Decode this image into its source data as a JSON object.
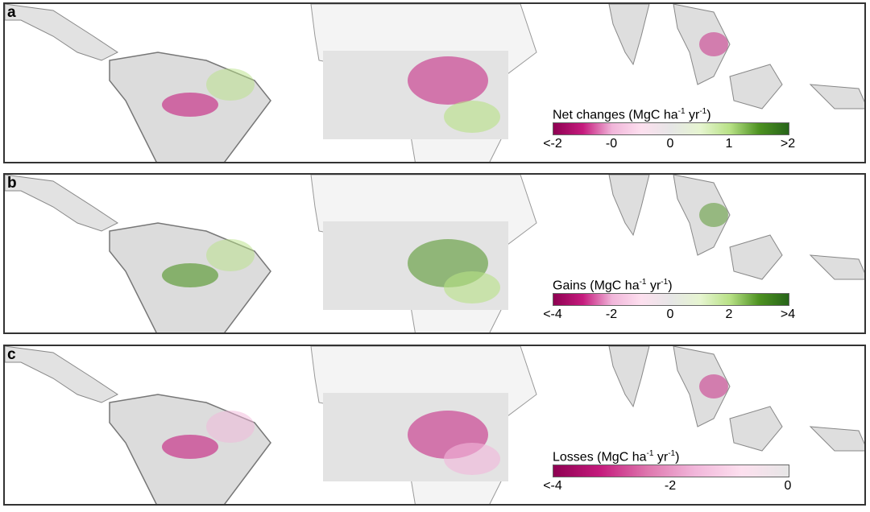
{
  "panels": [
    {
      "label": "a",
      "legend": {
        "title": "Net changes (MgC ha",
        "u1": "-1",
        "mid": " yr",
        "u2": "-1",
        "end": ")",
        "ticks": [
          "<-2",
          "-0",
          "0",
          "1",
          ">2"
        ]
      },
      "colors": [
        "#8e0152",
        "#c51b7d",
        "#f1b6da",
        "#fde0ef",
        "#e6e6e6",
        "#e6f5d0",
        "#b8e186",
        "#4d9221",
        "#276419"
      ]
    },
    {
      "label": "b",
      "legend": {
        "title": "Gains (MgC ha",
        "u1": "-1",
        "mid": " yr",
        "u2": "-1",
        "end": ")",
        "ticks": [
          "<-4",
          "-2",
          "0",
          "2",
          ">4"
        ]
      },
      "colors": [
        "#8e0152",
        "#c51b7d",
        "#f1b6da",
        "#fde0ef",
        "#e6e6e6",
        "#e6f5d0",
        "#b8e186",
        "#4d9221",
        "#276419"
      ]
    },
    {
      "label": "c",
      "legend": {
        "title": "Losses (MgC ha",
        "u1": "-1",
        "mid": " yr",
        "u2": "-1",
        "end": ")",
        "ticks": [
          "<-4",
          "-2",
          "0"
        ]
      },
      "colors": [
        "#8e0152",
        "#c51b7d",
        "#de77ae",
        "#f1b6da",
        "#fde0ef",
        "#e6e6e6"
      ]
    }
  ]
}
